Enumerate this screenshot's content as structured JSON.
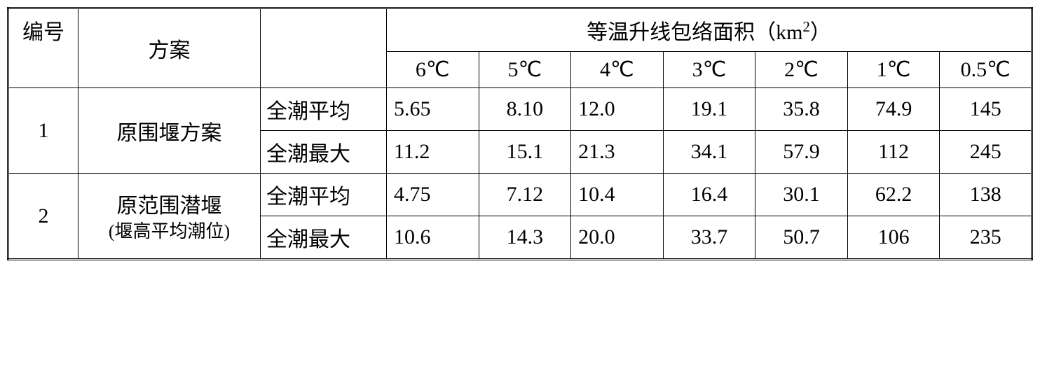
{
  "table": {
    "header": {
      "col_id": "编号",
      "col_plan": "方案",
      "group_title": "等温升线包络面积（km²）",
      "temp_cols": [
        "6℃",
        "5℃",
        "4℃",
        "3℃",
        "2℃",
        "1℃",
        "0.5℃"
      ]
    },
    "rows": [
      {
        "id": "1",
        "plan": "原围堰方案",
        "subrows": [
          {
            "type": "全潮平均",
            "values": [
              "5.65",
              "8.10",
              "12.0",
              "19.1",
              "35.8",
              "74.9",
              "145"
            ]
          },
          {
            "type": "全潮最大",
            "values": [
              "11.2",
              "15.1",
              "21.3",
              "34.1",
              "57.9",
              "112",
              "245"
            ]
          }
        ]
      },
      {
        "id": "2",
        "plan": "原范围潜堰",
        "plan_note": "(堰高平均潮位)",
        "subrows": [
          {
            "type": "全潮平均",
            "values": [
              "4.75",
              "7.12",
              "10.4",
              "16.4",
              "30.1",
              "62.2",
              "138"
            ]
          },
          {
            "type": "全潮最大",
            "values": [
              "10.6",
              "14.3",
              "20.0",
              "33.7",
              "50.7",
              "106",
              "235"
            ]
          }
        ]
      }
    ],
    "style": {
      "font_family": "SimSun",
      "text_color": "#000000",
      "background_color": "#ffffff",
      "border_color": "#000000",
      "outer_border_style": "double",
      "header_fontsize": 30,
      "cell_fontsize": 30,
      "subnote_fontsize": 26
    }
  }
}
